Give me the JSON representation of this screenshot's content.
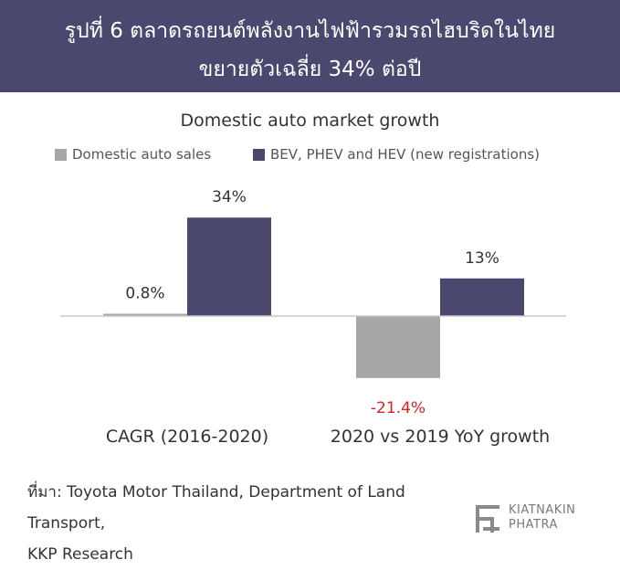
{
  "header": {
    "line1": "รูปที่ 6 ตลาดรถยนต์พลังงานไฟฟ้ารวมรถไฮบริดในไทย",
    "line2": "ขยายตัวเฉลี่ย 34% ต่อปี"
  },
  "chart_data": {
    "type": "bar",
    "title": "Domestic auto market growth",
    "categories": [
      "CAGR (2016-2020)",
      "2020 vs 2019 YoY growth"
    ],
    "series": [
      {
        "name": "Domestic auto sales",
        "values": [
          0.8,
          -21.4
        ],
        "labels": [
          "0.8%",
          "-21.4%"
        ],
        "color": "#a6a6a6"
      },
      {
        "name": "BEV, PHEV and HEV (new registrations)",
        "values": [
          34,
          13
        ],
        "labels": [
          "34%",
          "13%"
        ],
        "color": "#4b4870"
      }
    ],
    "ylim": [
      -25,
      36
    ],
    "grid": false,
    "legend": "top",
    "negative_label_color": "#e02020",
    "label_color": "#333333"
  },
  "source": {
    "line1": "ที่มา: Toyota Motor Thailand, Department of Land Transport,",
    "line2": "KKP Research"
  },
  "logo": {
    "line1": "KIATNAKIN",
    "line2": "PHATRA"
  }
}
